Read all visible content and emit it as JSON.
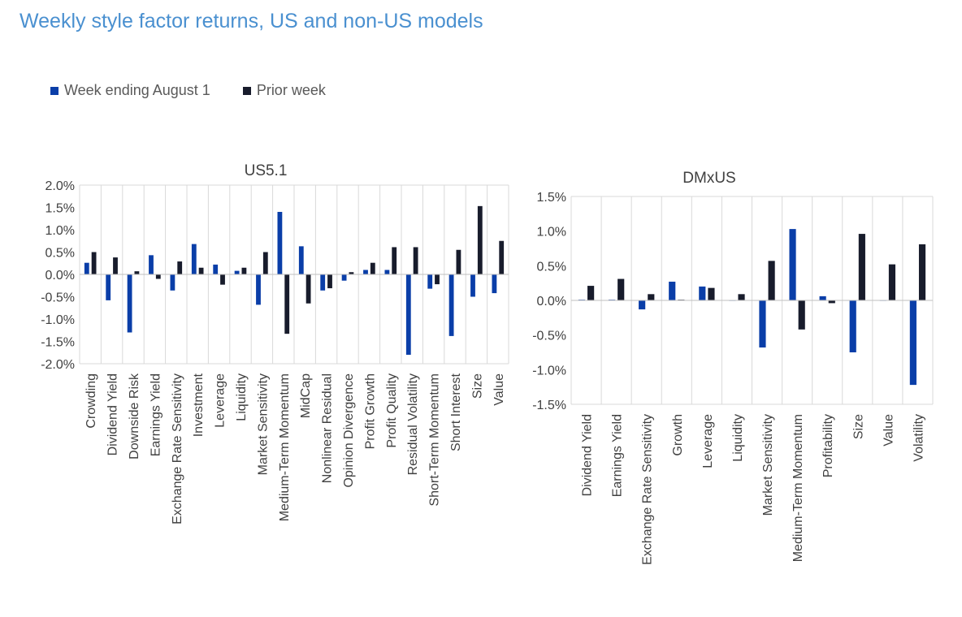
{
  "title": "Weekly style factor returns, US and non-US models",
  "legend": [
    {
      "name": "Week ending August 1",
      "color": "#0a3ea8"
    },
    {
      "name": "Prior week",
      "color": "#181c2c"
    }
  ],
  "chart_data": [
    {
      "type": "bar",
      "title": "US5.1",
      "categories": [
        "Crowding",
        "Dividend Yield",
        "Downside Risk",
        "Earnings Yield",
        "Exchange Rate Sensitivity",
        "Investment",
        "Leverage",
        "Liquidity",
        "Market Sensitivity",
        "Medium-Term Momentum",
        "MidCap",
        "Nonlinear Residual",
        "Opinion Divergence",
        "Profit Growth",
        "Profit Quality",
        "Residual Volatility",
        "Short-Term Momentum",
        "Short Interest",
        "Size",
        "Value"
      ],
      "series": [
        {
          "name": "Week ending August 1",
          "values": [
            0.26,
            -0.58,
            -1.3,
            0.43,
            -0.36,
            0.68,
            0.22,
            0.08,
            -0.68,
            1.4,
            0.63,
            -0.36,
            -0.14,
            0.1,
            0.1,
            -1.8,
            -0.32,
            -1.38,
            -0.5,
            -0.42
          ]
        },
        {
          "name": "Prior week",
          "values": [
            0.5,
            0.38,
            0.07,
            -0.1,
            0.29,
            0.15,
            -0.23,
            0.15,
            0.5,
            -1.33,
            -0.65,
            -0.31,
            0.05,
            0.26,
            0.61,
            0.61,
            -0.22,
            0.55,
            1.53,
            0.75
          ]
        }
      ],
      "ylim": [
        -2.0,
        2.0
      ],
      "yticks": [
        "-2.0%",
        "-1.5%",
        "-1.0%",
        "-0.5%",
        "0.0%",
        "0.5%",
        "1.0%",
        "1.5%",
        "2.0%"
      ],
      "grid": true
    },
    {
      "type": "bar",
      "title": "DMxUS",
      "categories": [
        "Dividend Yield",
        "Earnings Yield",
        "Exchange Rate Sensitivity",
        "Growth",
        "Leverage",
        "Liquidity",
        "Market Sensitivity",
        "Medium-Term Momentum",
        "Profitability",
        "Size",
        "Value",
        "Volatility"
      ],
      "series": [
        {
          "name": "Week ending August 1",
          "values": [
            0.01,
            0.01,
            -0.13,
            0.27,
            0.2,
            0.0,
            -0.68,
            1.03,
            0.06,
            -0.75,
            0.0,
            -1.22
          ]
        },
        {
          "name": "Prior week",
          "values": [
            0.21,
            0.31,
            0.09,
            0.01,
            0.18,
            0.09,
            0.57,
            -0.42,
            -0.04,
            0.96,
            0.52,
            0.81
          ]
        }
      ],
      "ylim": [
        -1.5,
        1.5
      ],
      "yticks": [
        "-1.5%",
        "-1.0%",
        "-0.5%",
        "0.0%",
        "0.5%",
        "1.0%",
        "1.5%"
      ],
      "grid": true
    }
  ]
}
